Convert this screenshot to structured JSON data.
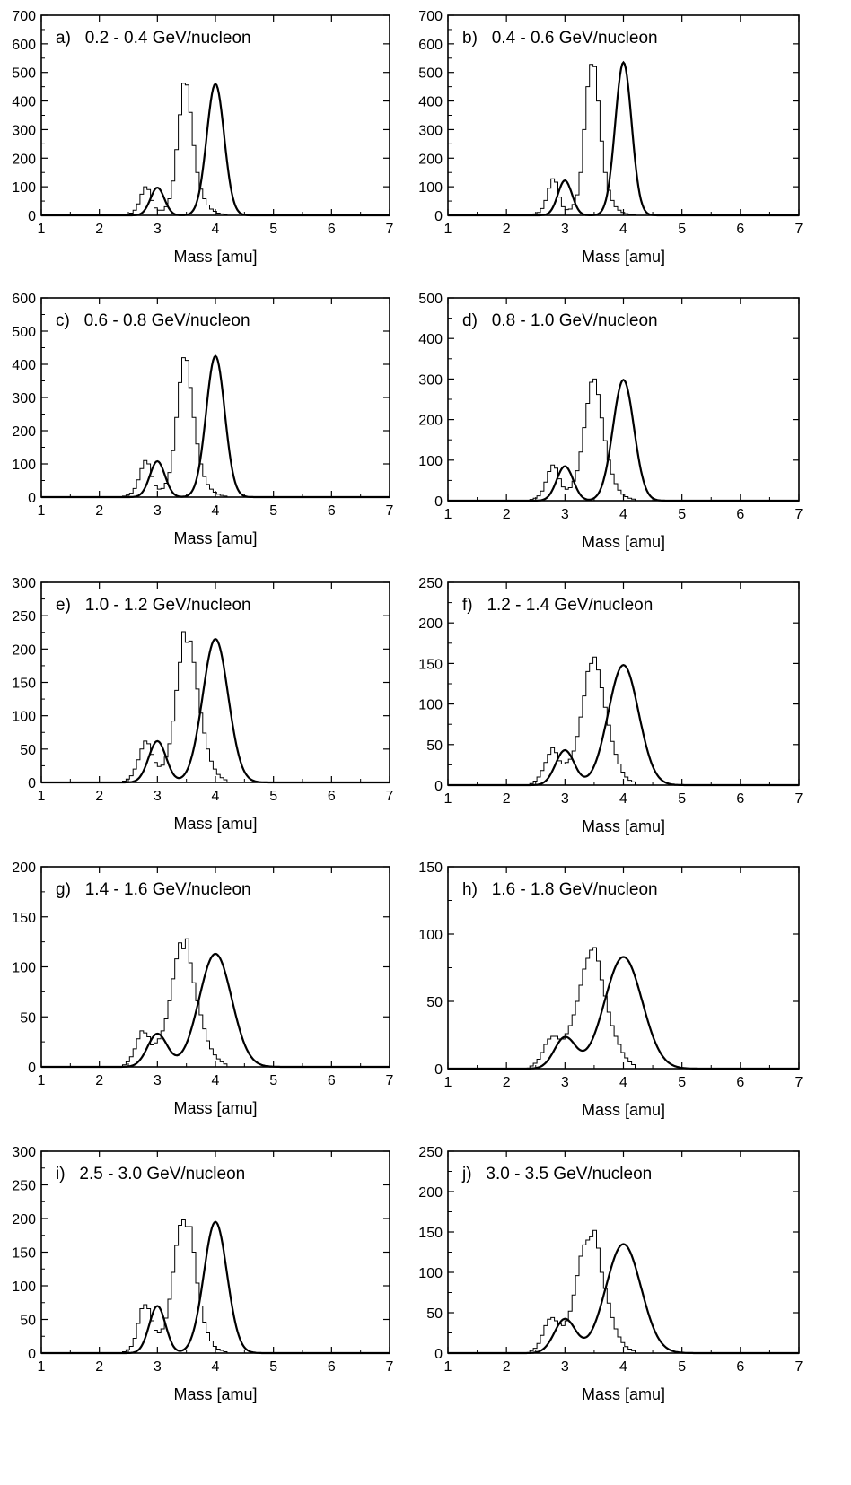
{
  "figure": {
    "xlabel": "Mass [amu]",
    "xlim": [
      1,
      7
    ],
    "xticks": [
      1,
      2,
      3,
      4,
      5,
      6,
      7
    ]
  },
  "chart_data": [
    {
      "type": "histogram+line",
      "title": "a)   0.2 - 0.4 GeV/nucleon",
      "xlabel": "Mass [amu]",
      "ylabel": "",
      "xlim": [
        1,
        7
      ],
      "ylim": [
        0,
        700
      ],
      "yticks": [
        0,
        100,
        200,
        300,
        400,
        500,
        600,
        700
      ],
      "fit": {
        "peaks": [
          {
            "center": 3.0,
            "height": 97,
            "width": 0.12
          },
          {
            "center": 4.0,
            "height": 460,
            "width": 0.15
          }
        ]
      },
      "histogram": {
        "bin_width": 0.06,
        "start": 2.4,
        "counts": [
          2,
          4,
          8,
          18,
          40,
          74,
          100,
          90,
          52,
          26,
          18,
          18,
          30,
          58,
          120,
          230,
          352,
          462,
          456,
          360,
          244,
          150,
          92,
          58,
          36,
          22,
          14,
          8,
          5,
          3
        ]
      }
    },
    {
      "type": "histogram+line",
      "title": "b)   0.4 - 0.6 GeV/nucleon",
      "xlabel": "Mass [amu]",
      "ylabel": "",
      "xlim": [
        1,
        7
      ],
      "ylim": [
        0,
        700
      ],
      "yticks": [
        0,
        100,
        200,
        300,
        400,
        500,
        600,
        700
      ],
      "fit": {
        "peaks": [
          {
            "center": 3.0,
            "height": 122,
            "width": 0.12
          },
          {
            "center": 4.0,
            "height": 535,
            "width": 0.14
          }
        ]
      },
      "histogram": {
        "bin_width": 0.06,
        "start": 2.4,
        "counts": [
          2,
          5,
          10,
          24,
          52,
          95,
          128,
          116,
          64,
          30,
          20,
          22,
          38,
          72,
          150,
          300,
          450,
          528,
          520,
          400,
          260,
          150,
          88,
          52,
          30,
          18,
          10,
          6,
          3,
          2
        ]
      }
    },
    {
      "type": "histogram+line",
      "title": "c)   0.6 - 0.8 GeV/nucleon",
      "xlabel": "Mass [amu]",
      "ylabel": "",
      "xlim": [
        1,
        7
      ],
      "ylim": [
        0,
        600
      ],
      "yticks": [
        0,
        100,
        200,
        300,
        400,
        500,
        600
      ],
      "fit": {
        "peaks": [
          {
            "center": 3.0,
            "height": 108,
            "width": 0.13
          },
          {
            "center": 4.0,
            "height": 425,
            "width": 0.16
          }
        ]
      },
      "histogram": {
        "bin_width": 0.06,
        "start": 2.4,
        "counts": [
          3,
          6,
          12,
          26,
          52,
          86,
          110,
          100,
          62,
          34,
          24,
          26,
          42,
          74,
          140,
          240,
          345,
          420,
          412,
          330,
          240,
          160,
          100,
          62,
          38,
          24,
          15,
          9,
          5,
          3
        ]
      }
    },
    {
      "type": "histogram+line",
      "title": "d)   0.8 - 1.0 GeV/nucleon",
      "xlabel": "Mass [amu]",
      "ylabel": "",
      "xlim": [
        1,
        7
      ],
      "ylim": [
        0,
        500
      ],
      "yticks": [
        0,
        100,
        200,
        300,
        400,
        500
      ],
      "fit": {
        "peaks": [
          {
            "center": 3.0,
            "height": 85,
            "width": 0.14
          },
          {
            "center": 4.0,
            "height": 298,
            "width": 0.18
          }
        ]
      },
      "histogram": {
        "bin_width": 0.06,
        "start": 2.4,
        "counts": [
          3,
          6,
          12,
          24,
          46,
          72,
          88,
          80,
          54,
          34,
          28,
          32,
          48,
          74,
          120,
          180,
          240,
          292,
          300,
          262,
          204,
          148,
          100,
          66,
          42,
          26,
          16,
          10,
          6,
          4
        ]
      }
    },
    {
      "type": "histogram+line",
      "title": "e)   1.0 - 1.2 GeV/nucleon",
      "xlabel": "Mass [amu]",
      "ylabel": "",
      "xlim": [
        1,
        7
      ],
      "ylim": [
        0,
        300
      ],
      "yticks": [
        0,
        50,
        100,
        150,
        200,
        250,
        300
      ],
      "fit": {
        "peaks": [
          {
            "center": 3.0,
            "height": 62,
            "width": 0.15
          },
          {
            "center": 4.0,
            "height": 215,
            "width": 0.22
          }
        ]
      },
      "histogram": {
        "bin_width": 0.06,
        "start": 2.4,
        "counts": [
          2,
          5,
          10,
          20,
          34,
          50,
          62,
          58,
          42,
          30,
          24,
          26,
          38,
          58,
          92,
          138,
          180,
          226,
          210,
          212,
          180,
          140,
          104,
          74,
          50,
          32,
          20,
          12,
          7,
          4
        ]
      }
    },
    {
      "type": "histogram+line",
      "title": "f)   1.2 - 1.4 GeV/nucleon",
      "xlabel": "Mass [amu]",
      "ylabel": "",
      "xlim": [
        1,
        7
      ],
      "ylim": [
        0,
        250
      ],
      "yticks": [
        0,
        50,
        100,
        150,
        200,
        250
      ],
      "fit": {
        "peaks": [
          {
            "center": 3.0,
            "height": 43,
            "width": 0.16
          },
          {
            "center": 4.0,
            "height": 148,
            "width": 0.26
          }
        ]
      },
      "histogram": {
        "bin_width": 0.06,
        "start": 2.4,
        "counts": [
          2,
          5,
          10,
          18,
          28,
          38,
          46,
          40,
          30,
          26,
          28,
          32,
          42,
          60,
          84,
          110,
          140,
          150,
          158,
          142,
          120,
          96,
          74,
          54,
          38,
          26,
          16,
          10,
          6,
          4
        ]
      }
    },
    {
      "type": "histogram+line",
      "title": "g)   1.4 - 1.6 GeV/nucleon",
      "xlabel": "Mass [amu]",
      "ylabel": "",
      "xlim": [
        1,
        7
      ],
      "ylim": [
        0,
        200
      ],
      "yticks": [
        0,
        50,
        100,
        150,
        200
      ],
      "fit": {
        "peaks": [
          {
            "center": 3.0,
            "height": 33,
            "width": 0.17
          },
          {
            "center": 4.0,
            "height": 113,
            "width": 0.28
          }
        ]
      },
      "histogram": {
        "bin_width": 0.06,
        "start": 2.4,
        "counts": [
          2,
          5,
          10,
          18,
          28,
          36,
          34,
          30,
          22,
          24,
          28,
          36,
          48,
          66,
          88,
          108,
          124,
          118,
          128,
          104,
          84,
          66,
          52,
          38,
          26,
          18,
          12,
          8,
          5,
          3
        ]
      }
    },
    {
      "type": "histogram+line",
      "title": "h)   1.6 - 1.8 GeV/nucleon",
      "xlabel": "Mass [amu]",
      "ylabel": "",
      "xlim": [
        1,
        7
      ],
      "ylim": [
        0,
        150
      ],
      "yticks": [
        0,
        50,
        100,
        150
      ],
      "fit": {
        "peaks": [
          {
            "center": 3.0,
            "height": 23,
            "width": 0.18
          },
          {
            "center": 4.0,
            "height": 83,
            "width": 0.32
          }
        ]
      },
      "histogram": {
        "bin_width": 0.06,
        "start": 2.4,
        "counts": [
          2,
          4,
          7,
          12,
          18,
          22,
          24,
          24,
          22,
          22,
          26,
          32,
          40,
          50,
          62,
          74,
          82,
          88,
          90,
          80,
          66,
          54,
          42,
          32,
          24,
          18,
          12,
          8,
          5,
          3
        ]
      }
    },
    {
      "type": "histogram+line",
      "title": "i)   2.5 - 3.0 GeV/nucleon",
      "xlabel": "Mass [amu]",
      "ylabel": "",
      "xlim": [
        1,
        7
      ],
      "ylim": [
        0,
        300
      ],
      "yticks": [
        0,
        50,
        100,
        150,
        200,
        250,
        300
      ],
      "fit": {
        "peaks": [
          {
            "center": 3.0,
            "height": 70,
            "width": 0.14
          },
          {
            "center": 4.0,
            "height": 195,
            "width": 0.2
          }
        ]
      },
      "histogram": {
        "bin_width": 0.06,
        "start": 2.4,
        "counts": [
          2,
          5,
          10,
          22,
          44,
          66,
          72,
          66,
          48,
          34,
          30,
          36,
          52,
          80,
          120,
          160,
          190,
          198,
          188,
          188,
          150,
          104,
          70,
          46,
          30,
          18,
          10,
          6,
          4,
          2
        ]
      }
    },
    {
      "type": "histogram+line",
      "title": "j)   3.0 - 3.5 GeV/nucleon",
      "xlabel": "Mass [amu]",
      "ylabel": "",
      "xlim": [
        1,
        7
      ],
      "ylim": [
        0,
        250
      ],
      "yticks": [
        0,
        50,
        100,
        150,
        200,
        250
      ],
      "fit": {
        "peaks": [
          {
            "center": 3.0,
            "height": 42,
            "width": 0.18
          },
          {
            "center": 4.0,
            "height": 135,
            "width": 0.3
          }
        ]
      },
      "histogram": {
        "bin_width": 0.06,
        "start": 2.4,
        "counts": [
          3,
          6,
          12,
          22,
          34,
          42,
          44,
          40,
          36,
          34,
          40,
          52,
          72,
          96,
          120,
          134,
          140,
          144,
          152,
          130,
          100,
          80,
          62,
          44,
          30,
          20,
          13,
          8,
          5,
          3
        ]
      }
    }
  ]
}
